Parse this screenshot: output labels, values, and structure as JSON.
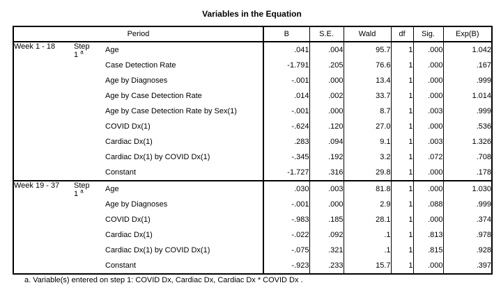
{
  "chart_data": {
    "type": "table",
    "title": "Variables in the Equation",
    "row_header": "Period",
    "columns": [
      "B",
      "S.E.",
      "Wald",
      "df",
      "Sig.",
      "Exp(B)"
    ],
    "sections": [
      {
        "period": "Week 1 - 18",
        "step": {
          "label": "Step",
          "number": "1",
          "marker": "a"
        },
        "rows": [
          {
            "variable": "Age",
            "values": [
              ".041",
              ".004",
              "95.7",
              "1",
              ".000",
              "1.042"
            ]
          },
          {
            "variable": "Case Detection Rate",
            "values": [
              "-1.791",
              ".205",
              "76.6",
              "1",
              ".000",
              ".167"
            ]
          },
          {
            "variable": "Age by Diagnoses",
            "values": [
              "-.001",
              ".000",
              "13.4",
              "1",
              ".000",
              ".999"
            ]
          },
          {
            "variable": "Age by Case Detection Rate",
            "values": [
              ".014",
              ".002",
              "33.7",
              "1",
              ".000",
              "1.014"
            ]
          },
          {
            "variable": "Age by Case Detection Rate by Sex(1)",
            "values": [
              "-.001",
              ".000",
              "8.7",
              "1",
              ".003",
              ".999"
            ]
          },
          {
            "variable": "COVID Dx(1)",
            "values": [
              "-.624",
              ".120",
              "27.0",
              "1",
              ".000",
              ".536"
            ]
          },
          {
            "variable": "Cardiac Dx(1)",
            "values": [
              ".283",
              ".094",
              "9.1",
              "1",
              ".003",
              "1.326"
            ]
          },
          {
            "variable": "Cardiac Dx(1) by COVID Dx(1)",
            "values": [
              "-.345",
              ".192",
              "3.2",
              "1",
              ".072",
              ".708"
            ]
          },
          {
            "variable": "Constant",
            "values": [
              "-1.727",
              ".316",
              "29.8",
              "1",
              ".000",
              ".178"
            ]
          }
        ]
      },
      {
        "period": "Week 19 - 37",
        "step": {
          "label": "Step",
          "number": "1",
          "marker": "a"
        },
        "rows": [
          {
            "variable": "Age",
            "values": [
              ".030",
              ".003",
              "81.8",
              "1",
              ".000",
              "1.030"
            ]
          },
          {
            "variable": "Age by Diagnoses",
            "values": [
              "-.001",
              ".000",
              "2.9",
              "1",
              ".088",
              ".999"
            ]
          },
          {
            "variable": "COVID Dx(1)",
            "values": [
              "-.983",
              ".185",
              "28.1",
              "1",
              ".000",
              ".374"
            ]
          },
          {
            "variable": "Cardiac Dx(1)",
            "values": [
              "-.022",
              ".092",
              ".1",
              "1",
              ".813",
              ".978"
            ]
          },
          {
            "variable": "Cardiac Dx(1) by COVID Dx(1)",
            "values": [
              "-.075",
              ".321",
              ".1",
              "1",
              ".815",
              ".928"
            ]
          },
          {
            "variable": "Constant",
            "values": [
              "-.923",
              ".233",
              "15.7",
              "1",
              ".000",
              ".397"
            ]
          }
        ]
      }
    ],
    "footnote": "a. Variable(s) entered on step 1: COVID Dx, Cardiac Dx, Cardiac Dx * COVID Dx ."
  }
}
